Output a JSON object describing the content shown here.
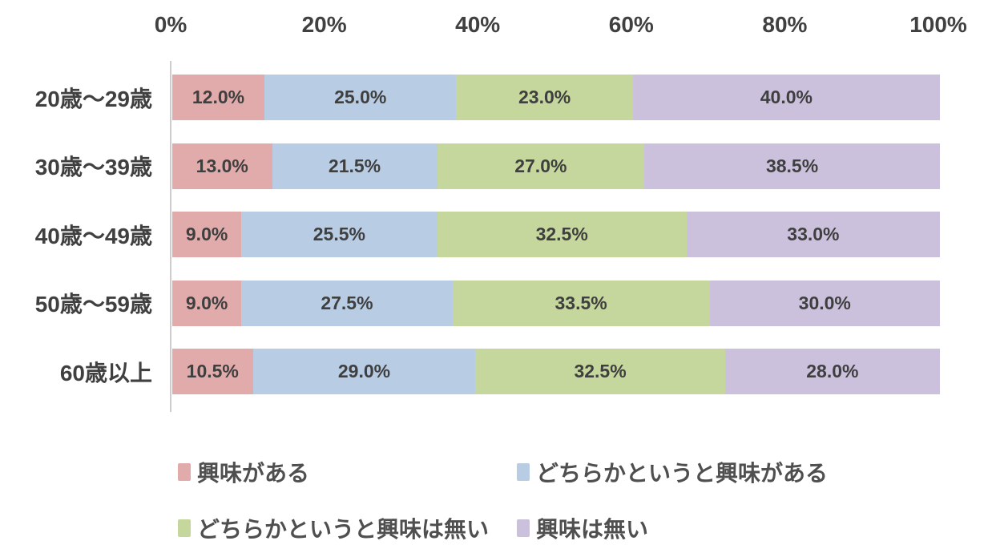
{
  "chart_data": {
    "type": "bar",
    "orientation": "horizontal",
    "stacked": true,
    "percent_stacked": true,
    "title": "",
    "xlabel": "",
    "ylabel": "",
    "xlim": [
      0,
      100
    ],
    "x_ticks": [
      "0%",
      "20%",
      "40%",
      "60%",
      "80%",
      "100%"
    ],
    "grid": false,
    "legend_position": "bottom",
    "legend_columns": 2,
    "categories": [
      "20歳〜29歳",
      "30歳〜39歳",
      "40歳〜49歳",
      "50歳〜59歳",
      "60歳以上"
    ],
    "series": [
      {
        "name": "興味がある",
        "color": "#e2abab",
        "values": [
          12.0,
          13.0,
          9.0,
          9.0,
          10.5
        ]
      },
      {
        "name": "どちらかというと興味がある",
        "color": "#b8cce4",
        "values": [
          25.0,
          21.5,
          25.5,
          27.5,
          29.0
        ]
      },
      {
        "name": "どちらかというと興味は無い",
        "color": "#c5d79d",
        "values": [
          23.0,
          27.0,
          32.5,
          33.5,
          32.5
        ]
      },
      {
        "name": "興味は無い",
        "color": "#ccc1dc",
        "values": [
          40.0,
          38.5,
          33.0,
          30.0,
          28.0
        ]
      }
    ],
    "data_labels": [
      [
        "12.0%",
        "25.0%",
        "23.0%",
        "40.0%"
      ],
      [
        "13.0%",
        "21.5%",
        "27.0%",
        "38.5%"
      ],
      [
        "9.0%",
        "25.5%",
        "32.5%",
        "33.0%"
      ],
      [
        "9.0%",
        "27.5%",
        "33.5%",
        "30.0%"
      ],
      [
        "10.5%",
        "29.0%",
        "32.5%",
        "28.0%"
      ]
    ],
    "colors": {
      "axis_line": "#cecccc",
      "tick_label": "#404040",
      "category_label": "#404040",
      "data_label": "#3f3f3f",
      "legend_label": "#4f4f4f",
      "background": "#ffffff"
    }
  },
  "layout_text": {
    "note": ""
  }
}
